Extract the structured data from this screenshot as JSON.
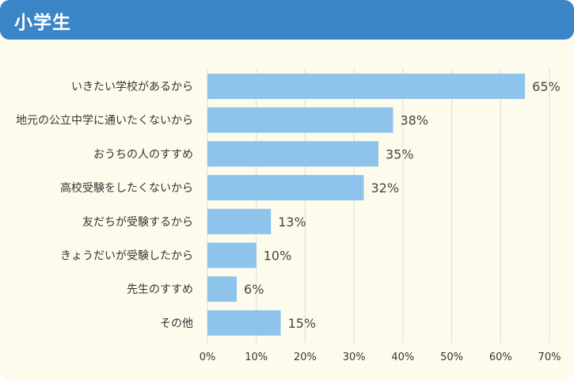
{
  "header": {
    "title": "小学生"
  },
  "colors": {
    "header": "#3a85c8",
    "bar": "#8ec3ec",
    "background": "#fdfcec",
    "grid": "#dcdcd2"
  },
  "chart_data": {
    "type": "bar",
    "orientation": "horizontal",
    "title": "",
    "xlabel": "",
    "ylabel": "",
    "categories": [
      "いきたい学校があるから",
      "地元の公立中学に通いたくないから",
      "おうちの人のすすめ",
      "高校受験をしたくないから",
      "友だちが受験するから",
      "きょうだいが受験したから",
      "先生のすすめ",
      "その他"
    ],
    "values": [
      65,
      38,
      35,
      32,
      13,
      10,
      6,
      15
    ],
    "value_labels": [
      "65%",
      "38%",
      "35%",
      "32%",
      "13%",
      "10%",
      "6%",
      "15%"
    ],
    "xlim": [
      0,
      70
    ],
    "ticks": [
      0,
      10,
      20,
      30,
      40,
      50,
      60,
      70
    ],
    "tick_labels": [
      "0%",
      "10%",
      "20%",
      "30%",
      "40%",
      "50%",
      "60%",
      "70%"
    ],
    "grid": true,
    "legend": "none"
  }
}
